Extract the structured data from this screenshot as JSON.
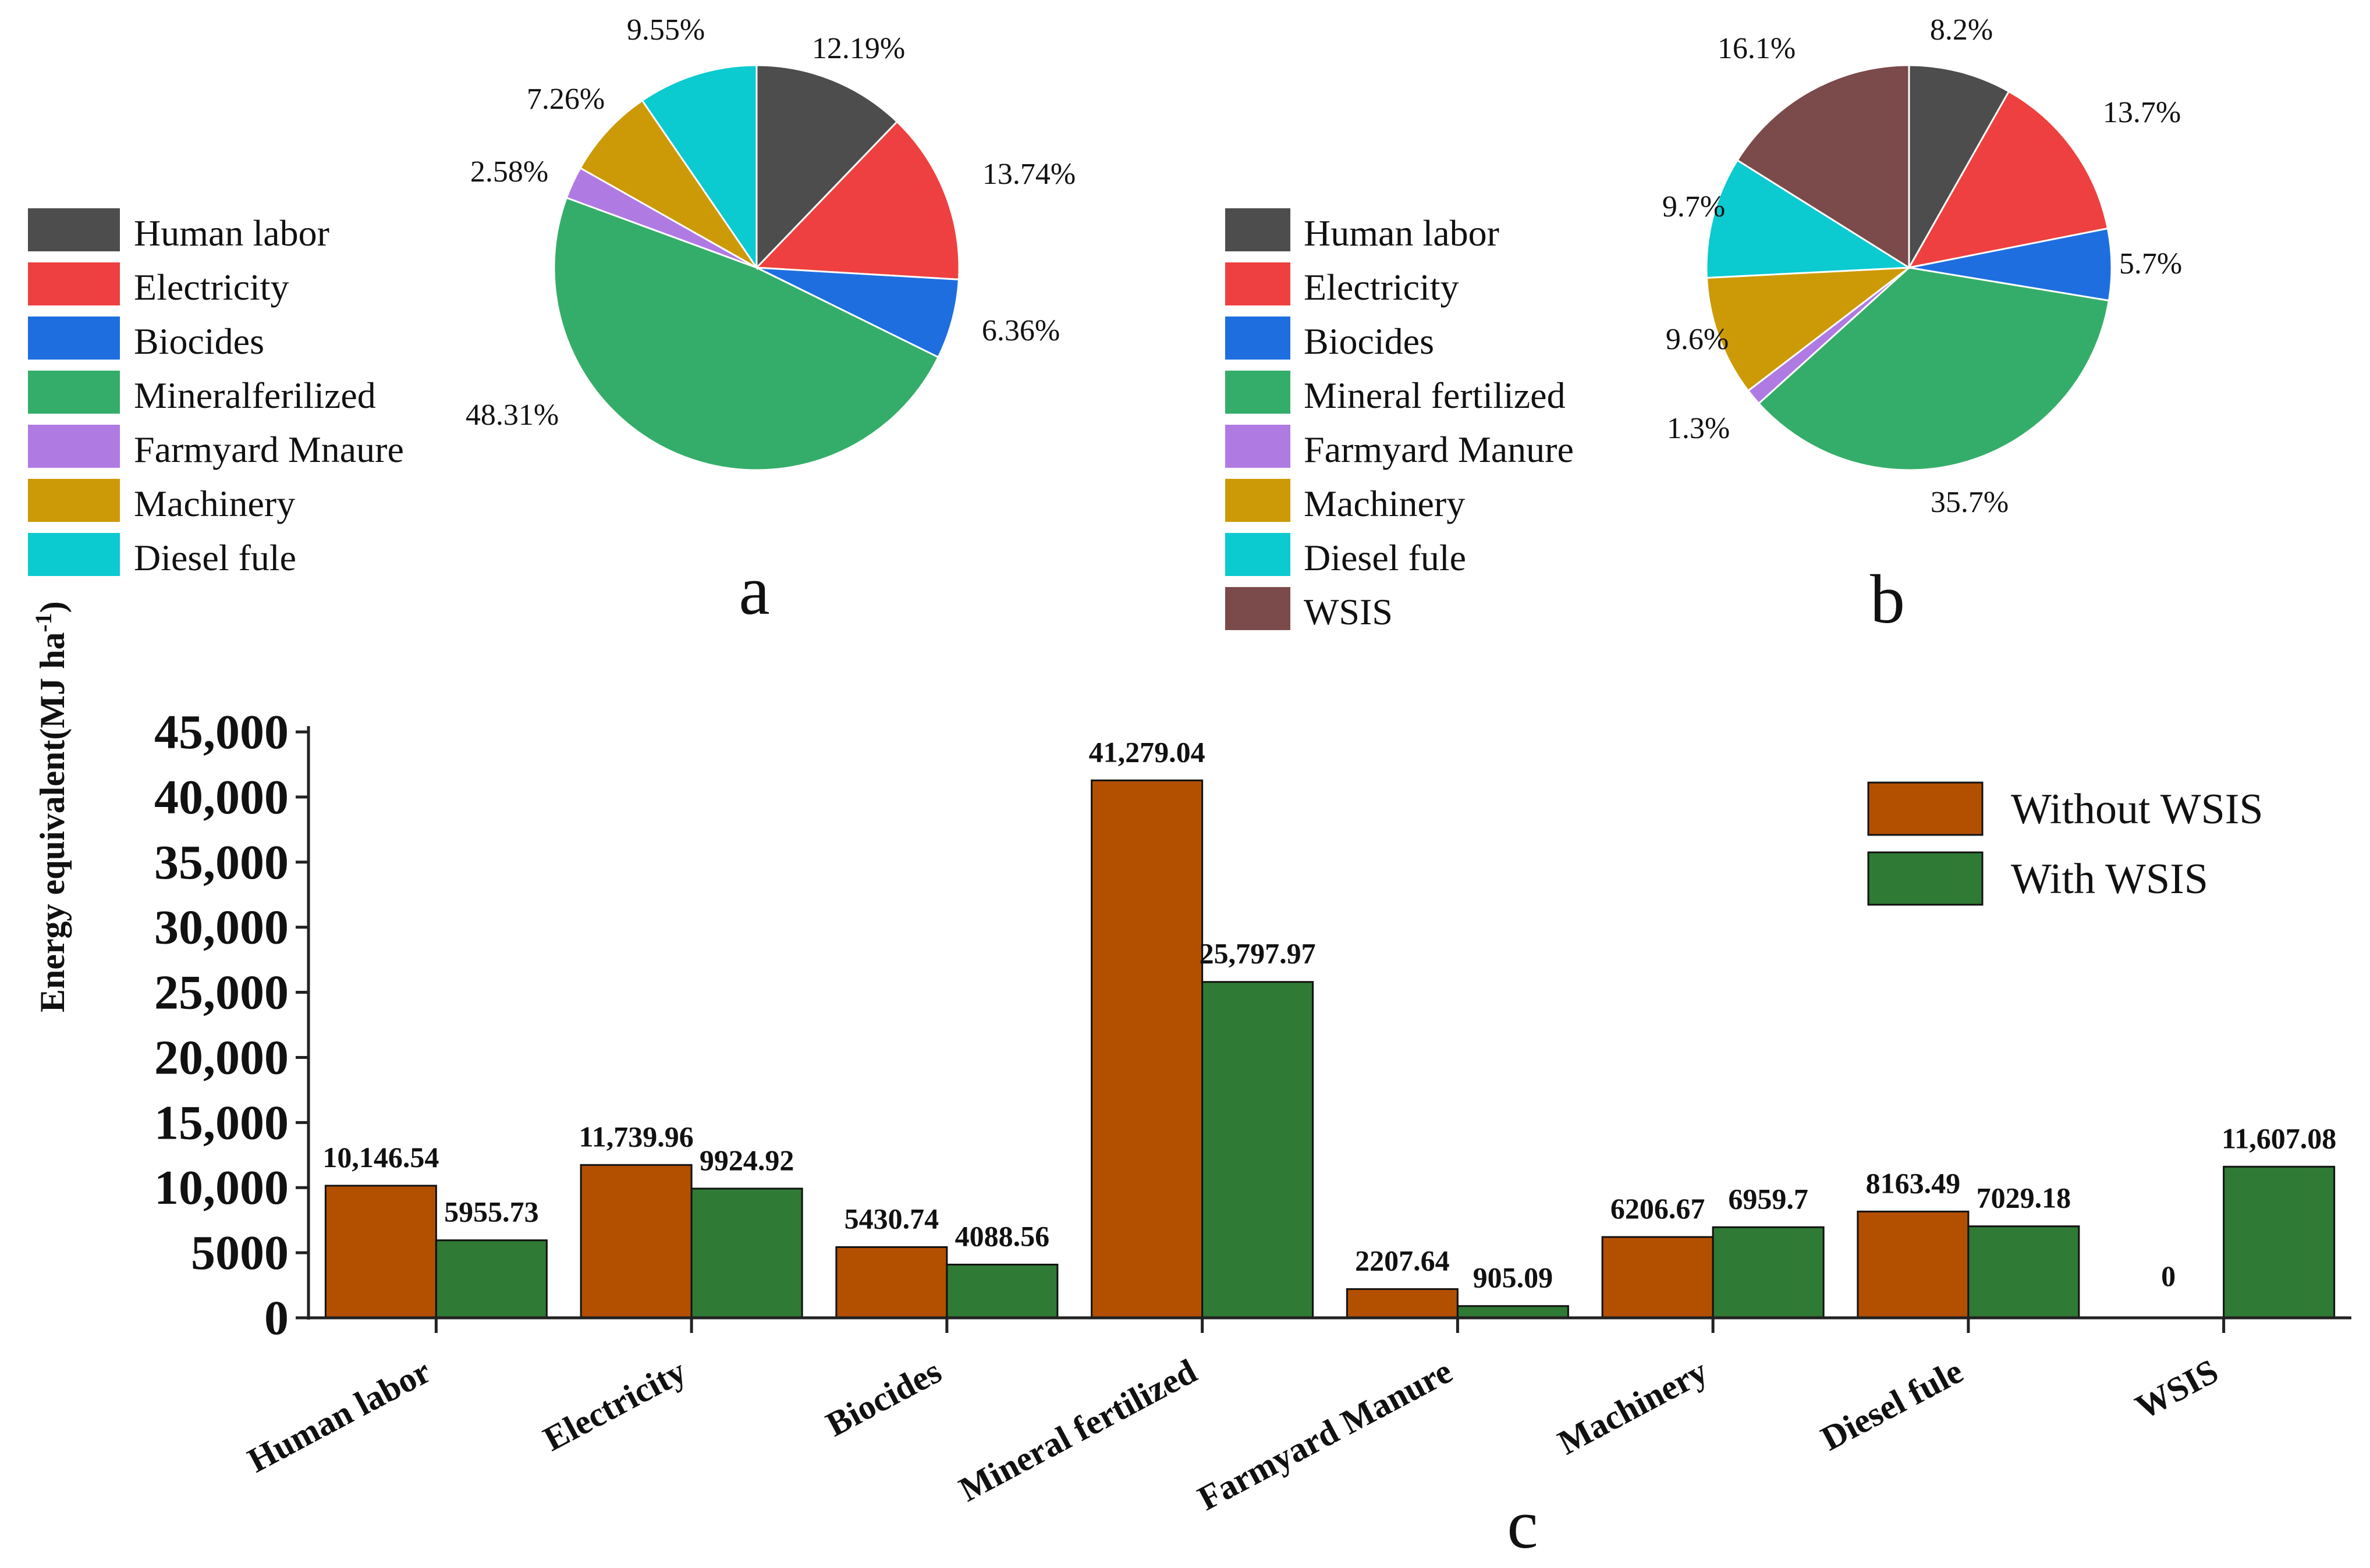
{
  "colors": {
    "human_labor": "#4d4d4d",
    "electricity": "#ee4040",
    "biocides": "#1f6ee0",
    "mineral_fertilized": "#35ad6a",
    "farmyard_manure": "#b07ae3",
    "machinery": "#cc9a06",
    "diesel_fule": "#0bcad0",
    "wsis": "#7b4a4a",
    "without_wsis": "#b35000",
    "with_wsis": "#2f7a34"
  },
  "chart_data": [
    {
      "type": "pie",
      "panel": "a",
      "title": "a",
      "legend": [
        "Human labor",
        "Electricity",
        "Biocides",
        "Mineralferilized",
        "Farmyard Mnaure",
        "Machinery",
        "Diesel fule"
      ],
      "slice_keys": [
        "human_labor",
        "electricity",
        "biocides",
        "mineral_fertilized",
        "farmyard_manure",
        "machinery",
        "diesel_fule"
      ],
      "values": [
        12.19,
        13.74,
        6.36,
        48.31,
        2.58,
        7.26,
        9.55
      ],
      "labels": [
        "12.19%",
        "13.74%",
        "6.36%",
        "48.31%",
        "2.58%",
        "7.26%",
        "9.55%"
      ]
    },
    {
      "type": "pie",
      "panel": "b",
      "title": "b",
      "legend": [
        "Human labor",
        "Electricity",
        "Biocides",
        "Mineral fertilized",
        "Farmyard Manure",
        "Machinery",
        "Diesel fule",
        "WSIS"
      ],
      "slice_keys": [
        "human_labor",
        "electricity",
        "biocides",
        "mineral_fertilized",
        "farmyard_manure",
        "machinery",
        "diesel_fule",
        "wsis"
      ],
      "values": [
        8.2,
        13.7,
        5.7,
        35.7,
        1.3,
        9.6,
        9.7,
        16.1
      ],
      "labels": [
        "8.2%",
        "13.7%",
        "5.7%",
        "35.7%",
        "1.3%",
        "9.6%",
        "9.7%",
        "16.1%"
      ]
    },
    {
      "type": "bar",
      "panel": "c",
      "title": "c",
      "xlabel": "",
      "ylabel": "Energy equivalent(MJ ha",
      "ylabel_superscript": "-1",
      "ylabel_suffix": ")",
      "ylim": [
        0,
        45000
      ],
      "yticks": [
        0,
        5000,
        10000,
        15000,
        20000,
        25000,
        30000,
        35000,
        40000,
        45000
      ],
      "ytick_labels": [
        "0",
        "5000",
        "10,000",
        "15,000",
        "20,000",
        "25,000",
        "30,000",
        "35,000",
        "40,000",
        "45,000"
      ],
      "categories": [
        "Human labor",
        "Electricity",
        "Biocides",
        "Mineral fertilized",
        "Farmyard Manure",
        "Machinery",
        "Diesel fule",
        "WSIS"
      ],
      "series": [
        {
          "name": "Without WSIS",
          "color_key": "without_wsis",
          "values": [
            10146.54,
            11739.96,
            5430.74,
            41279.04,
            2207.64,
            6206.67,
            8163.49,
            0
          ],
          "labels": [
            "10,146.54",
            "11,739.96",
            "5430.74",
            "41,279.04",
            "2207.64",
            "6206.67",
            "8163.49",
            "0"
          ]
        },
        {
          "name": "With WSIS",
          "color_key": "with_wsis",
          "values": [
            5955.73,
            9924.92,
            4088.56,
            25797.97,
            905.09,
            6959.7,
            7029.18,
            11607.08
          ],
          "labels": [
            "5955.73",
            "9924.92",
            "4088.56",
            "25,797.97",
            "905.09",
            "6959.7",
            "7029.18",
            "11,607.08"
          ]
        }
      ]
    }
  ]
}
